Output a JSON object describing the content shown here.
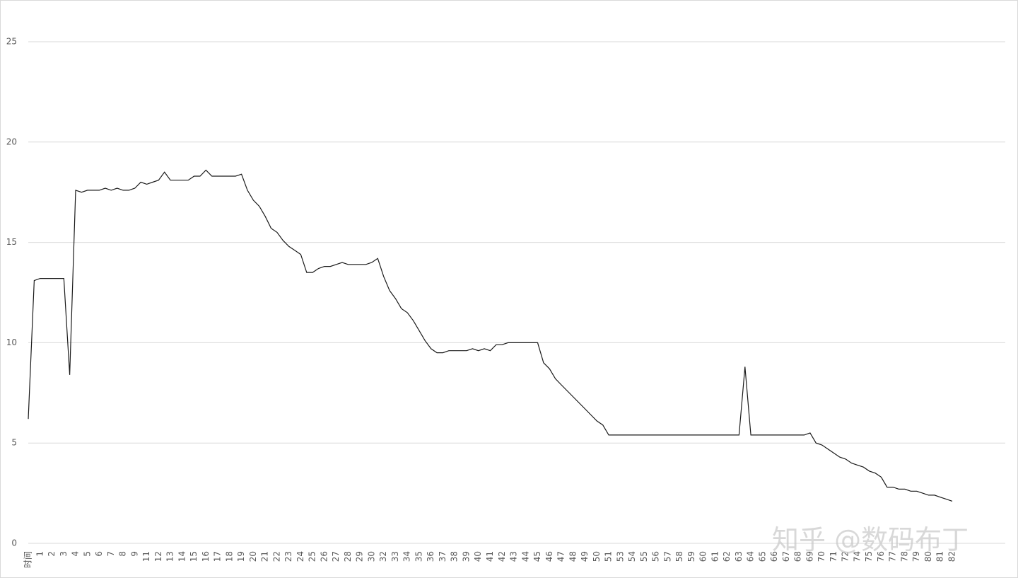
{
  "chart_data": {
    "type": "line",
    "watermark": "知乎 @数码布丁",
    "categories": [
      "时间",
      null,
      "1",
      null,
      "2",
      null,
      "3",
      null,
      "4",
      null,
      "5",
      null,
      "6",
      null,
      "7",
      null,
      "8",
      null,
      "9",
      null,
      "11",
      null,
      "12",
      null,
      "13",
      null,
      "14",
      null,
      "15",
      null,
      "16",
      null,
      "17",
      null,
      "18",
      null,
      "19",
      null,
      "20",
      null,
      "21",
      null,
      "22",
      null,
      "23",
      null,
      "24",
      null,
      "25",
      null,
      "26",
      null,
      "27",
      null,
      "28",
      null,
      "29",
      null,
      "30",
      null,
      "32",
      null,
      "33",
      null,
      "34",
      null,
      "35",
      null,
      "36",
      null,
      "37",
      null,
      "38",
      null,
      "39",
      null,
      "40",
      null,
      "41",
      null,
      "42",
      null,
      "43",
      null,
      "44",
      null,
      "45",
      null,
      "46",
      null,
      "47",
      null,
      "48",
      null,
      "49",
      null,
      "50",
      null,
      "51",
      null,
      "53",
      null,
      "54",
      null,
      "55",
      null,
      "56",
      null,
      "57",
      null,
      "58",
      null,
      "59",
      null,
      "60",
      null,
      "61",
      null,
      "62",
      null,
      "63",
      null,
      "64",
      null,
      "65",
      null,
      "66",
      null,
      "67",
      null,
      "68",
      null,
      "69",
      null,
      "70",
      null,
      "71",
      null,
      "72",
      null,
      "74",
      null,
      "75",
      null,
      "76",
      null,
      "77",
      null,
      "78",
      null,
      "79",
      null,
      "80",
      null,
      "81",
      null,
      "82"
    ],
    "values": [
      6.2,
      13.1,
      13.2,
      13.2,
      13.2,
      13.2,
      13.2,
      8.4,
      17.6,
      17.5,
      17.6,
      17.6,
      17.6,
      17.7,
      17.6,
      17.7,
      17.6,
      17.6,
      17.7,
      18.0,
      17.9,
      18.0,
      18.1,
      18.5,
      18.1,
      18.1,
      18.1,
      18.1,
      18.3,
      18.3,
      18.6,
      18.3,
      18.3,
      18.3,
      18.3,
      18.3,
      18.4,
      17.6,
      17.1,
      16.8,
      16.3,
      15.7,
      15.5,
      15.1,
      14.8,
      14.6,
      14.4,
      13.5,
      13.5,
      13.7,
      13.8,
      13.8,
      13.9,
      14.0,
      13.9,
      13.9,
      13.9,
      13.9,
      14.0,
      14.2,
      13.3,
      12.6,
      12.2,
      11.7,
      11.5,
      11.1,
      10.6,
      10.1,
      9.7,
      9.5,
      9.5,
      9.6,
      9.6,
      9.6,
      9.6,
      9.7,
      9.6,
      9.7,
      9.6,
      9.9,
      9.9,
      10.0,
      10.0,
      10.0,
      10.0,
      10.0,
      10.0,
      9.0,
      8.7,
      8.2,
      7.9,
      7.6,
      7.3,
      7.0,
      6.7,
      6.4,
      6.1,
      5.9,
      5.4,
      5.4,
      5.4,
      5.4,
      5.4,
      5.4,
      5.4,
      5.4,
      5.4,
      5.4,
      5.4,
      5.4,
      5.4,
      5.4,
      5.4,
      5.4,
      5.4,
      5.4,
      5.4,
      5.4,
      5.4,
      5.4,
      5.4,
      8.8,
      5.4,
      5.4,
      5.4,
      5.4,
      5.4,
      5.4,
      5.4,
      5.4,
      5.4,
      5.4,
      5.5,
      5.0,
      4.9,
      4.7,
      4.5,
      4.3,
      4.2,
      4.0,
      3.9,
      3.8,
      3.6,
      3.5,
      3.3,
      2.8,
      2.8,
      2.7,
      2.7,
      2.6,
      2.6,
      2.5,
      2.4,
      2.4,
      2.3,
      2.2,
      2.1
    ],
    "color": "#1a1a1a",
    "ylim": [
      0,
      25
    ],
    "yticks": [
      0,
      5,
      10,
      15,
      20,
      25
    ],
    "grid": true
  }
}
